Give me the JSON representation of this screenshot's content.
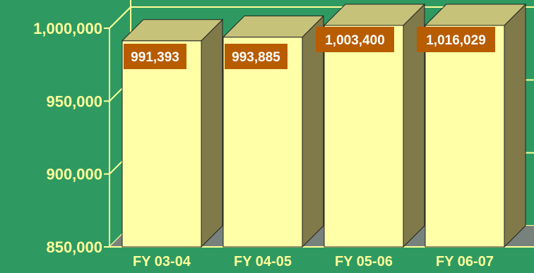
{
  "chart_data": {
    "type": "bar",
    "categories": [
      "FY 03-04",
      "FY 04-05",
      "FY 05-06",
      "FY 06-07"
    ],
    "values": [
      991393,
      993885,
      1003400,
      1016029
    ],
    "data_labels": [
      "991,393",
      "993,885",
      "1,003,400",
      "1,016,029"
    ],
    "ylim": [
      850000,
      1000000
    ],
    "y_ticks": [
      850000,
      900000,
      950000,
      1000000
    ],
    "y_tick_labels": [
      "850,000",
      "900,000",
      "950,000",
      "1,000,000"
    ],
    "grid": true,
    "title": "",
    "xlabel": "",
    "ylabel": ""
  },
  "colors": {
    "background": "#2e9a62",
    "bar_front": "#ffffa8",
    "bar_side": "#807a4a",
    "bar_top": "#c6c27a",
    "axis_text": "#ffff99",
    "label_box": "#b85c00",
    "label_text": "#ffffff",
    "grid": "#ffff99",
    "floor": "#7f7f7f"
  }
}
